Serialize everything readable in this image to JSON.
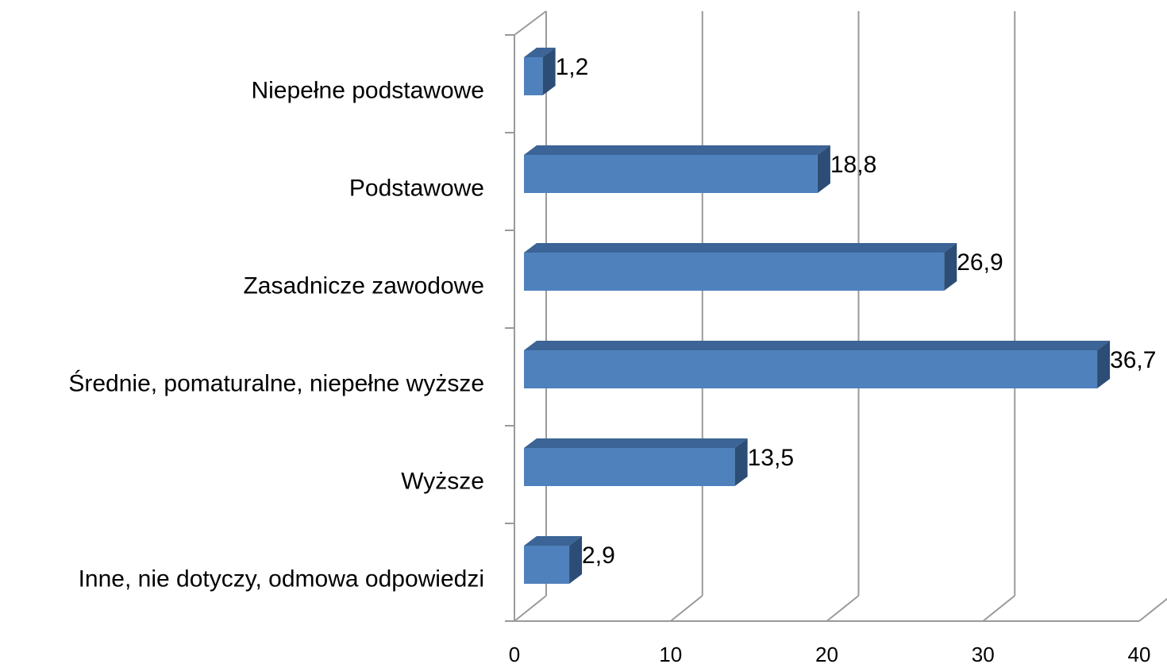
{
  "chart_data": {
    "type": "bar",
    "orientation": "horizontal",
    "three_d": true,
    "categories": [
      "Niepełne podstawowe",
      "Podstawowe",
      "Zasadnicze zawodowe",
      "Średnie, pomaturalne, niepełne wyższe",
      "Wyższe",
      "Inne, nie dotyczy, odmowa odpowiedzi"
    ],
    "values": [
      1.2,
      18.8,
      26.9,
      36.7,
      13.5,
      2.9
    ],
    "value_labels": [
      "1,2",
      "18,8",
      "26,9",
      "36,7",
      "13,5",
      "2,9"
    ],
    "color": "#4f81bd",
    "xlim": [
      0,
      40
    ],
    "xticks": [
      0,
      10,
      20,
      30,
      40
    ],
    "grid": true
  }
}
